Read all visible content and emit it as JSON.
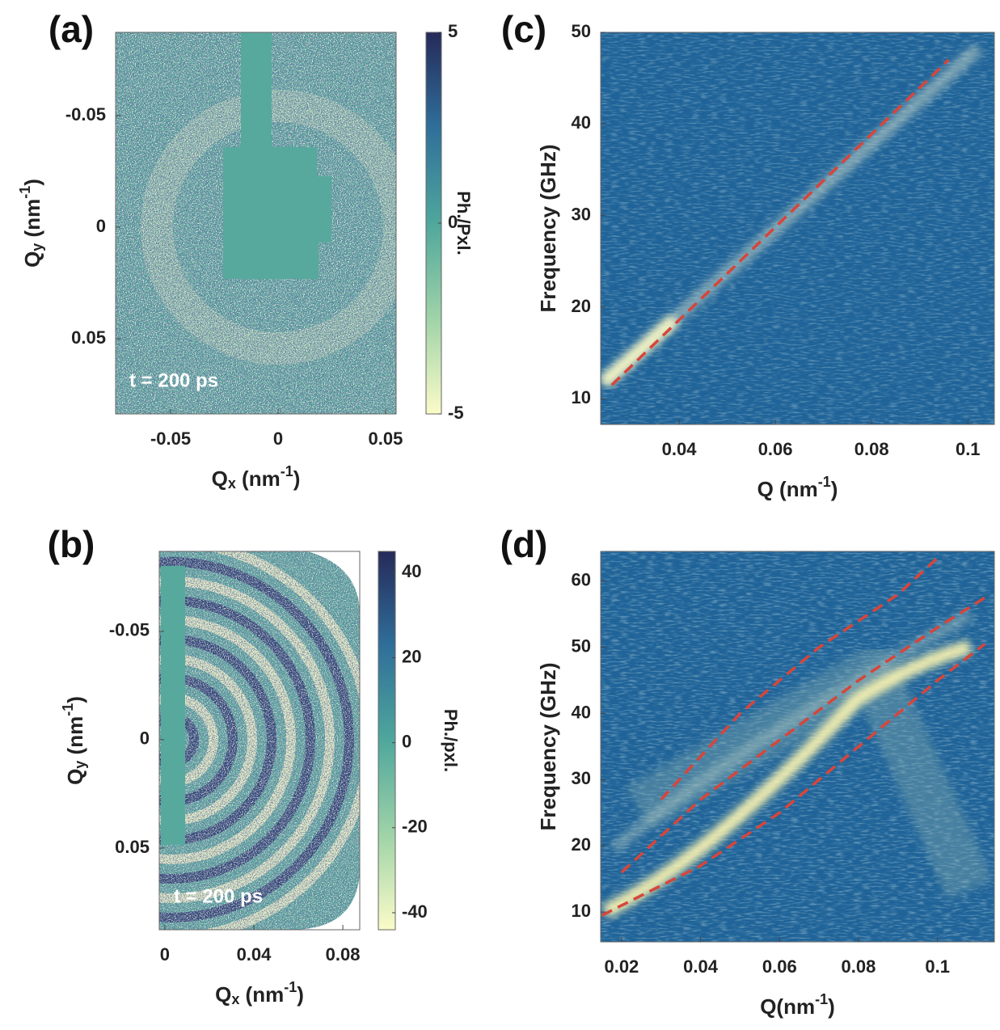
{
  "chart_data": [
    {
      "type": "heatmap",
      "label": "(a)",
      "xlabel": [
        {
          "t": "Q"
        },
        {
          "sub": "x"
        },
        {
          "t": " (nm"
        },
        {
          "sup": "-1"
        },
        {
          "t": ")"
        }
      ],
      "ylabel": [
        {
          "t": "Q"
        },
        {
          "sub": "y"
        },
        {
          "t": " (nm"
        },
        {
          "sup": "-1"
        },
        {
          "t": ")"
        }
      ],
      "xlim": [
        -0.0756,
        0.0549
      ],
      "xticks": [
        -0.05,
        0,
        0.05
      ],
      "ylim": [
        -0.0873,
        0.0837
      ],
      "yticks": [
        -0.05,
        0,
        0.05
      ],
      "yreverse": true,
      "annotation": "t = 200 ps",
      "clim": [
        -5,
        5
      ],
      "cticks": [
        5,
        0,
        -5
      ],
      "colorbar_label": "Ph./Pxl.",
      "colormap": [
        "#fbfbc8",
        "#9fd3a8",
        "#4fa79c",
        "#2f6f9a",
        "#262a5a"
      ]
    },
    {
      "type": "heatmap",
      "label": "(b)",
      "xlabel": [
        {
          "t": "Q"
        },
        {
          "sub": "x"
        },
        {
          "t": " (nm"
        },
        {
          "sup": "-1"
        },
        {
          "t": ")"
        }
      ],
      "ylabel": [
        {
          "t": "Q"
        },
        {
          "sub": "y"
        },
        {
          "t": " (nm"
        },
        {
          "sup": "-1"
        },
        {
          "t": ")"
        }
      ],
      "xlim": [
        -0.0025,
        0.0876
      ],
      "xticks": [
        0,
        0.04,
        0.08
      ],
      "ylim": [
        -0.0869,
        0.0877
      ],
      "yticks": [
        -0.05,
        0,
        0.05
      ],
      "yreverse": true,
      "annotation": "t = 200 ps",
      "clim": [
        -44,
        45
      ],
      "cticks": [
        40,
        20,
        0,
        -20,
        -40
      ],
      "colorbar_label": "Ph./pxl.",
      "colormap": [
        "#fbfbc8",
        "#9fd3a8",
        "#4fa79c",
        "#2f6f9a",
        "#262a5a"
      ]
    },
    {
      "type": "heatmap",
      "label": "(c)",
      "xlabel": [
        {
          "t": "Q (nm"
        },
        {
          "sup": "-1"
        },
        {
          "t": ")"
        }
      ],
      "ylabel": [
        {
          "t": "Frequency (GHz)"
        }
      ],
      "xlim": [
        0.0237,
        0.1055
      ],
      "xticks": [
        0.04,
        0.06,
        0.08,
        0.1
      ],
      "ylim": [
        7.2,
        50
      ],
      "yticks": [
        10,
        20,
        30,
        40,
        50
      ],
      "series": [
        {
          "color": "#d8453a",
          "x": [
            0.026,
            0.096
          ],
          "values": [
            11.5,
            47
          ]
        }
      ]
    },
    {
      "type": "heatmap",
      "label": "(d)",
      "xlabel": [
        {
          "t": "Q(nm"
        },
        {
          "sup": "-1"
        },
        {
          "t": ")"
        }
      ],
      "ylabel": [
        {
          "t": "Frequency (GHz)"
        }
      ],
      "xlim": [
        0.0147,
        0.1144
      ],
      "xticks": [
        0.02,
        0.04,
        0.06,
        0.08,
        0.1
      ],
      "ylim": [
        5.5,
        64.5
      ],
      "yticks": [
        10,
        20,
        30,
        40,
        50,
        60
      ],
      "series": [
        {
          "color": "#d8453a",
          "x": [
            0.03,
            0.05,
            0.07,
            0.09,
            0.1
          ],
          "values": [
            27,
            40,
            50,
            58,
            63.5
          ]
        },
        {
          "color": "#d8453a",
          "x": [
            0.02,
            0.04,
            0.06,
            0.08,
            0.1,
            0.112
          ],
          "values": [
            16,
            27,
            36,
            45,
            53,
            57.5
          ]
        },
        {
          "color": "#d8453a",
          "x": [
            0.015,
            0.04,
            0.06,
            0.08,
            0.1,
            0.112
          ],
          "values": [
            9.5,
            17,
            25,
            35,
            45,
            50.5
          ]
        }
      ]
    }
  ]
}
